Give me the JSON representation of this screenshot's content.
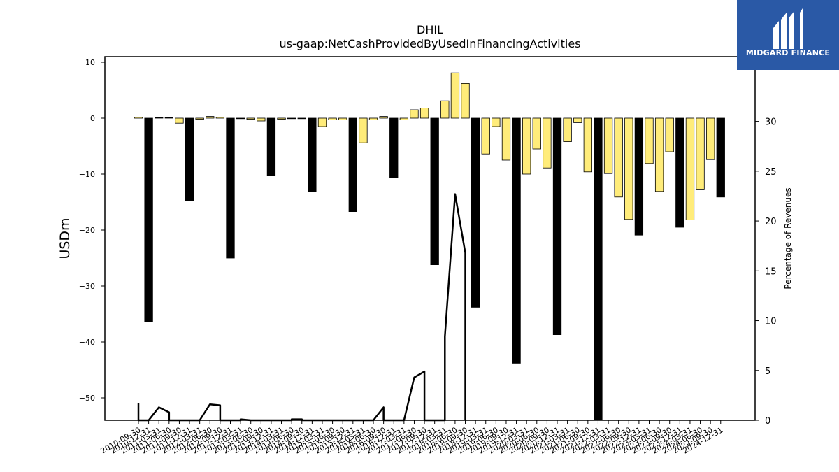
{
  "chart_data": {
    "type": "bar",
    "title": "DHIL",
    "subtitle": "us-gaap:NetCashProvidedByUsedInFinancingActivities",
    "ylabel": "USDm",
    "y2label": "Percentage of Revenues",
    "ylim": [
      -54,
      11
    ],
    "y2lim": [
      0,
      36.5
    ],
    "yticks": [
      10,
      0,
      -10,
      -20,
      -30,
      -40,
      -50
    ],
    "y2ticks": [
      0,
      5,
      10,
      15,
      20,
      25,
      30
    ],
    "categories": [
      "2010-09-30",
      "2010-12-31",
      "2011-03-31",
      "2011-06-30",
      "2011-09-30",
      "2011-12-31",
      "2012-03-31",
      "2012-06-30",
      "2012-09-30",
      "2012-12-31",
      "2013-03-31",
      "2013-06-30",
      "2013-09-30",
      "2013-12-31",
      "2014-03-31",
      "2014-06-30",
      "2014-09-30",
      "2014-12-31",
      "2015-03-31",
      "2015-06-30",
      "2015-09-30",
      "2015-12-31",
      "2016-03-31",
      "2016-06-30",
      "2016-09-30",
      "2016-12-31",
      "2017-03-31",
      "2017-06-30",
      "2017-09-30",
      "2017-12-31",
      "2018-03-31",
      "2018-06-30",
      "2018-09-30",
      "2018-12-31",
      "2019-03-31",
      "2019-06-30",
      "2019-09-30",
      "2019-12-31",
      "2020-03-31",
      "2020-06-30",
      "2020-09-30",
      "2020-12-31",
      "2021-03-31",
      "2021-06-30",
      "2021-09-30",
      "2021-12-31",
      "2022-03-31",
      "2022-06-30",
      "2022-09-30",
      "2022-12-31",
      "2023-03-31",
      "2023-06-30",
      "2023-09-30",
      "2023-12-31",
      "2024-03-31",
      "2024-06-30",
      "2024-09-30",
      "2024-12-31"
    ],
    "series": [
      {
        "values": [
          0.2,
          -36.4,
          0.1,
          0.1,
          -0.9,
          -14.8,
          -0.2,
          0.3,
          0.2,
          -25.0,
          -0.1,
          -0.2,
          -0.5,
          -10.3,
          -0.2,
          -0.1,
          -0.1,
          -13.2,
          -1.5,
          -0.3,
          -0.3,
          -16.7,
          -4.4,
          -0.3,
          0.3,
          -10.7,
          -0.3,
          1.5,
          1.8,
          -26.2,
          3.1,
          8.1,
          6.2,
          -33.8,
          -6.4,
          -1.5,
          -7.5,
          -43.8,
          -10.0,
          -5.5,
          -8.9,
          -38.7,
          -4.2,
          -0.8,
          -9.6,
          -54.0,
          -9.9,
          -14.1,
          -18.1,
          -20.9,
          -8.1,
          -13.1,
          -6.0,
          -19.5,
          -18.2,
          -12.8,
          -7.4,
          -14.1
        ],
        "highlight": [
          false,
          true,
          false,
          false,
          false,
          true,
          false,
          false,
          false,
          true,
          false,
          false,
          false,
          true,
          false,
          false,
          false,
          true,
          false,
          false,
          false,
          true,
          false,
          false,
          false,
          true,
          false,
          false,
          false,
          true,
          false,
          false,
          false,
          true,
          false,
          false,
          false,
          true,
          false,
          false,
          false,
          true,
          false,
          false,
          false,
          true,
          false,
          false,
          false,
          true,
          false,
          false,
          false,
          true,
          false,
          false,
          false,
          true
        ]
      },
      {
        "axis": "right",
        "type": "line",
        "points": [
          [
            0,
            1.7
          ],
          [
            0,
            0
          ],
          [
            1,
            0
          ],
          [
            2,
            1.3
          ],
          [
            3,
            0.8
          ],
          [
            3,
            0
          ],
          [
            6,
            0
          ],
          [
            7,
            1.6
          ],
          [
            8,
            1.5
          ],
          [
            8,
            0
          ],
          [
            10,
            0
          ],
          [
            10,
            0.1
          ],
          [
            11,
            0
          ],
          [
            15,
            0
          ],
          [
            15,
            0.1
          ],
          [
            16,
            0.1
          ],
          [
            16,
            0
          ],
          [
            23,
            0
          ],
          [
            24,
            1.3
          ],
          [
            24,
            0
          ],
          [
            26,
            0
          ],
          [
            27,
            4.3
          ],
          [
            28,
            4.9
          ],
          [
            28,
            0
          ],
          [
            30,
            0
          ],
          [
            30,
            8.4
          ],
          [
            31,
            22.7
          ],
          [
            32,
            16.8
          ],
          [
            32,
            0
          ]
        ]
      }
    ],
    "colors": {
      "highlight": "#000000",
      "normal": "#ffec7a",
      "edge": "#000000",
      "line": "#000000"
    },
    "grid": false,
    "legend": "none"
  },
  "logo": {
    "name": "MIDGARD FINANCE",
    "icon": "midgard-m-icon",
    "color": "#2a59a6"
  }
}
